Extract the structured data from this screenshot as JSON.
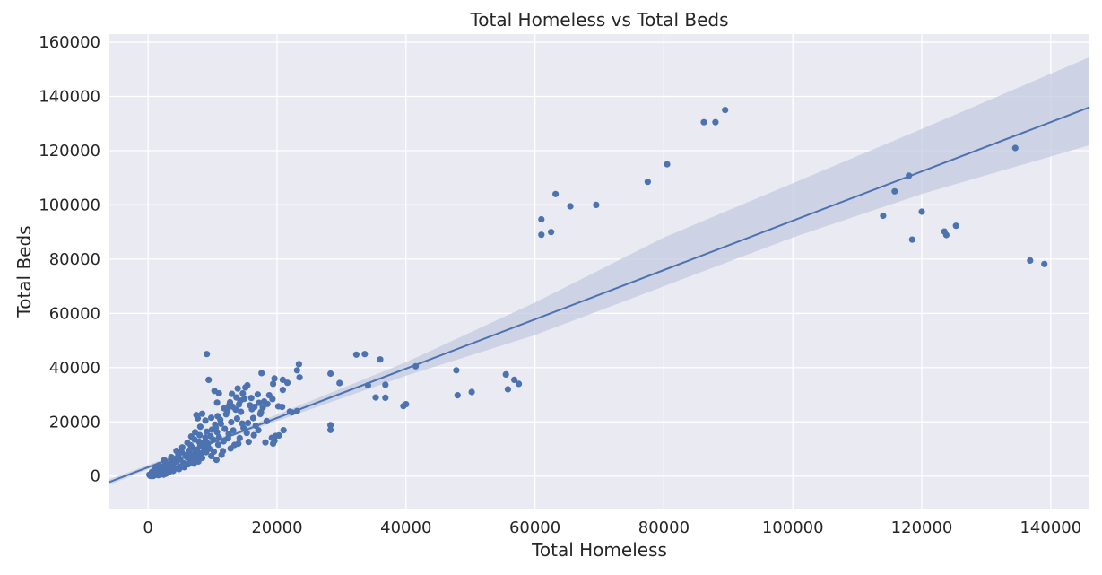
{
  "chart_data": {
    "type": "scatter",
    "title": "Total Homeless vs Total Beds",
    "xlabel": "Total Homeless",
    "ylabel": "Total Beds",
    "xlim": [
      -6000,
      146000
    ],
    "ylim": [
      -12000,
      163000
    ],
    "xticks": [
      0,
      20000,
      40000,
      60000,
      80000,
      100000,
      120000,
      140000
    ],
    "yticks": [
      0,
      20000,
      40000,
      60000,
      80000,
      100000,
      120000,
      140000,
      160000
    ],
    "grid": true,
    "colors": {
      "background": "#eaeaf2",
      "grid": "#ffffff",
      "points": "#4c72b0",
      "line": "#4c72b0",
      "band": "#c3cbe0"
    },
    "regression": {
      "line": [
        [
          -6000,
          -2200
        ],
        [
          146000,
          136000
        ]
      ],
      "ci_upper": [
        [
          -6000,
          -1200
        ],
        [
          10000,
          13000
        ],
        [
          40000,
          42000
        ],
        [
          60000,
          64000
        ],
        [
          80000,
          88000
        ],
        [
          100000,
          108000
        ],
        [
          120000,
          128000
        ],
        [
          146000,
          154500
        ]
      ],
      "ci_lower": [
        [
          -6000,
          -3200
        ],
        [
          10000,
          12000
        ],
        [
          40000,
          37000
        ],
        [
          60000,
          52000
        ],
        [
          80000,
          70000
        ],
        [
          100000,
          88000
        ],
        [
          120000,
          104000
        ],
        [
          146000,
          122000
        ]
      ]
    },
    "points": [
      [
        89500,
        135000
      ],
      [
        86200,
        130500
      ],
      [
        88000,
        130500
      ],
      [
        80500,
        115000
      ],
      [
        77500,
        108500
      ],
      [
        63200,
        104000
      ],
      [
        61000,
        94700
      ],
      [
        62500,
        90000
      ],
      [
        61000,
        89000
      ],
      [
        65500,
        99500
      ],
      [
        69500,
        100000
      ],
      [
        134500,
        121000
      ],
      [
        118000,
        110800
      ],
      [
        115800,
        105000
      ],
      [
        114000,
        96000
      ],
      [
        120000,
        97500
      ],
      [
        118500,
        87200
      ],
      [
        123500,
        90200
      ],
      [
        123800,
        88900
      ],
      [
        125300,
        92300
      ],
      [
        136800,
        79500
      ],
      [
        139000,
        78200
      ],
      [
        55500,
        37500
      ],
      [
        56800,
        35500
      ],
      [
        57500,
        34000
      ],
      [
        55800,
        32000
      ],
      [
        47800,
        39000
      ],
      [
        48000,
        29800
      ],
      [
        50200,
        31000
      ],
      [
        41500,
        40500
      ],
      [
        40000,
        26500
      ],
      [
        39600,
        25800
      ],
      [
        36000,
        43000
      ],
      [
        33600,
        45000
      ],
      [
        32300,
        44800
      ],
      [
        36800,
        33700
      ],
      [
        34100,
        33500
      ],
      [
        35300,
        29000
      ],
      [
        36800,
        28900
      ],
      [
        29700,
        34300
      ],
      [
        28300,
        37800
      ],
      [
        28300,
        18800
      ],
      [
        28300,
        17000
      ],
      [
        23400,
        41300
      ],
      [
        23100,
        39000
      ],
      [
        23500,
        36400
      ],
      [
        21600,
        34400
      ],
      [
        20900,
        35500
      ],
      [
        19600,
        36000
      ],
      [
        20900,
        31800
      ],
      [
        19400,
        34000
      ],
      [
        17600,
        38000
      ],
      [
        9100,
        45000
      ],
      [
        23100,
        24000
      ],
      [
        22300,
        23500
      ],
      [
        20800,
        25500
      ],
      [
        21000,
        16900
      ],
      [
        20300,
        15000
      ],
      [
        19800,
        14800
      ],
      [
        19600,
        13000
      ],
      [
        19400,
        12000
      ],
      [
        18800,
        29800
      ],
      [
        18000,
        27500
      ],
      [
        17200,
        27000
      ],
      [
        16500,
        25500
      ],
      [
        15400,
        33500
      ],
      [
        15100,
        32700
      ],
      [
        14900,
        28500
      ],
      [
        14300,
        27800
      ],
      [
        13900,
        32300
      ],
      [
        13000,
        30300
      ],
      [
        12600,
        26200
      ],
      [
        11000,
        30500
      ],
      [
        10300,
        31400
      ],
      [
        10700,
        27100
      ],
      [
        9400,
        35500
      ],
      [
        8400,
        23000
      ],
      [
        7500,
        22500
      ],
      [
        7700,
        21300
      ],
      [
        6700,
        14600
      ],
      [
        7300,
        16200
      ],
      [
        8100,
        18200
      ],
      [
        8900,
        20500
      ],
      [
        9800,
        21500
      ],
      [
        10500,
        17800
      ],
      [
        11300,
        19300
      ],
      [
        12100,
        22800
      ],
      [
        13600,
        24500
      ],
      [
        14400,
        23700
      ],
      [
        15800,
        26100
      ],
      [
        16100,
        24700
      ],
      [
        17400,
        22900
      ],
      [
        18400,
        20300
      ],
      [
        17100,
        16900
      ],
      [
        16400,
        15100
      ],
      [
        15600,
        12600
      ],
      [
        14200,
        14000
      ],
      [
        13400,
        11500
      ],
      [
        12400,
        13900
      ],
      [
        11600,
        9200
      ],
      [
        10900,
        11600
      ],
      [
        10100,
        13400
      ],
      [
        9300,
        12000
      ],
      [
        8700,
        9500
      ],
      [
        8100,
        11300
      ],
      [
        7400,
        8700
      ],
      [
        6800,
        10600
      ],
      [
        6300,
        9400
      ],
      [
        5800,
        7600
      ],
      [
        5200,
        9000
      ],
      [
        4700,
        7900
      ],
      [
        4200,
        6300
      ],
      [
        3700,
        5600
      ],
      [
        3200,
        4400
      ],
      [
        2700,
        4900
      ],
      [
        2300,
        3500
      ],
      [
        1900,
        2900
      ],
      [
        1500,
        2200
      ],
      [
        1200,
        1700
      ],
      [
        900,
        1100
      ],
      [
        700,
        700
      ],
      [
        500,
        400
      ],
      [
        300,
        200
      ],
      [
        600,
        1500
      ],
      [
        1000,
        2500
      ],
      [
        1400,
        3300
      ],
      [
        1800,
        1200
      ],
      [
        2200,
        1900
      ],
      [
        2600,
        2800
      ],
      [
        3000,
        3600
      ],
      [
        3500,
        3000
      ],
      [
        4000,
        4700
      ],
      [
        4500,
        5500
      ],
      [
        5000,
        6300
      ],
      [
        5500,
        4800
      ],
      [
        6000,
        7000
      ],
      [
        6500,
        8000
      ],
      [
        7000,
        6500
      ],
      [
        7600,
        9800
      ],
      [
        8200,
        8300
      ],
      [
        8800,
        12600
      ],
      [
        9500,
        10100
      ],
      [
        10200,
        9000
      ],
      [
        11000,
        14300
      ],
      [
        11700,
        12800
      ],
      [
        12500,
        15600
      ],
      [
        13200,
        16800
      ],
      [
        14000,
        12000
      ],
      [
        14800,
        17800
      ],
      [
        15500,
        19600
      ],
      [
        16300,
        21400
      ],
      [
        17800,
        25300
      ],
      [
        18500,
        26600
      ],
      [
        19300,
        28400
      ],
      [
        20200,
        25700
      ],
      [
        22000,
        23800
      ],
      [
        12800,
        10200
      ],
      [
        11400,
        7800
      ],
      [
        10600,
        6000
      ],
      [
        9800,
        7400
      ],
      [
        9000,
        8800
      ],
      [
        8400,
        6700
      ],
      [
        7800,
        5400
      ],
      [
        7100,
        4600
      ],
      [
        6400,
        5800
      ],
      [
        5700,
        4100
      ],
      [
        4900,
        3500
      ],
      [
        4300,
        2800
      ],
      [
        3800,
        2200
      ],
      [
        3300,
        1600
      ],
      [
        2800,
        900
      ],
      [
        2400,
        500
      ],
      [
        1600,
        300
      ],
      [
        800,
        0
      ],
      [
        400,
        0
      ],
      [
        200,
        500
      ],
      [
        1100,
        400
      ],
      [
        2000,
        1000
      ],
      [
        2900,
        2000
      ],
      [
        3900,
        1900
      ],
      [
        4800,
        2600
      ],
      [
        5600,
        3300
      ],
      [
        6200,
        4300
      ],
      [
        6900,
        7900
      ],
      [
        7700,
        7100
      ],
      [
        8600,
        10900
      ],
      [
        9700,
        14700
      ],
      [
        10700,
        16200
      ],
      [
        11900,
        17400
      ],
      [
        12900,
        19900
      ],
      [
        13800,
        21200
      ],
      [
        14600,
        19400
      ],
      [
        15300,
        15900
      ],
      [
        16700,
        18600
      ],
      [
        17500,
        23600
      ],
      [
        18200,
        12400
      ],
      [
        19200,
        14100
      ],
      [
        5300,
        10600
      ],
      [
        6100,
        12300
      ],
      [
        7200,
        13500
      ],
      [
        8000,
        15100
      ],
      [
        9100,
        16400
      ],
      [
        10400,
        19000
      ],
      [
        11200,
        20800
      ],
      [
        12300,
        24200
      ],
      [
        13100,
        25600
      ],
      [
        14100,
        26400
      ],
      [
        4400,
        9300
      ],
      [
        3600,
        7000
      ],
      [
        2500,
        5900
      ],
      [
        1700,
        4000
      ],
      [
        6600,
        11400
      ],
      [
        7900,
        12700
      ],
      [
        8900,
        14200
      ],
      [
        9900,
        17100
      ],
      [
        10800,
        22100
      ],
      [
        11800,
        25000
      ],
      [
        12700,
        27200
      ],
      [
        13700,
        29000
      ],
      [
        14700,
        30500
      ],
      [
        16000,
        28800
      ],
      [
        17000,
        30100
      ]
    ]
  }
}
